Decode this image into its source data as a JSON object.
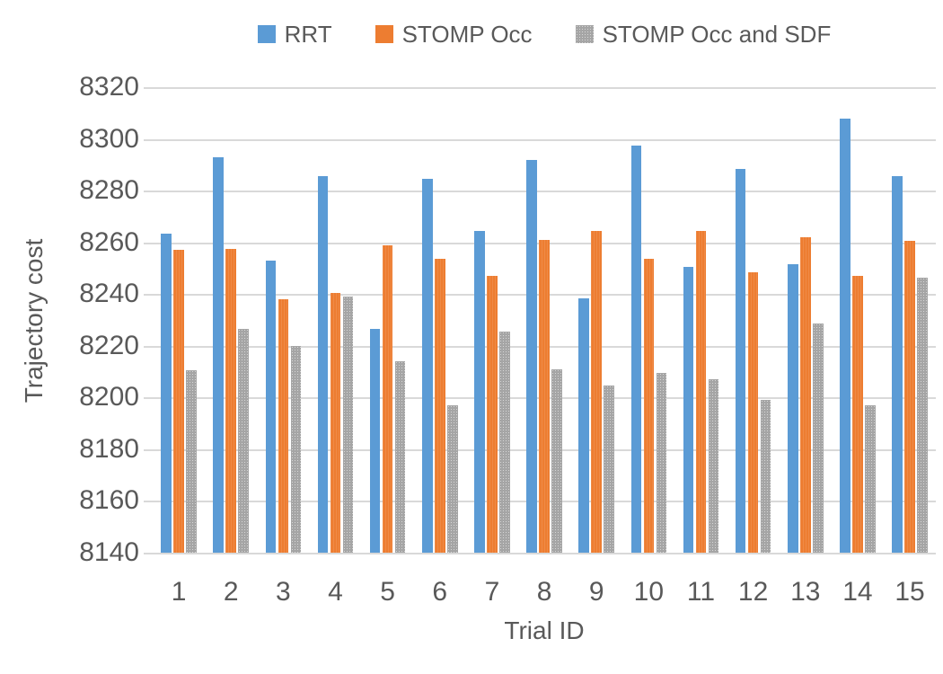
{
  "chart_data": {
    "type": "bar",
    "title": "",
    "xlabel": "Trial ID",
    "ylabel": "Trajectory cost",
    "ylim": [
      8140,
      8320
    ],
    "ytick_step": 20,
    "grid": true,
    "legend_position": "top",
    "categories": [
      "1",
      "2",
      "3",
      "4",
      "5",
      "6",
      "7",
      "8",
      "9",
      "10",
      "11",
      "12",
      "13",
      "14",
      "15"
    ],
    "series": [
      {
        "name": "RRT",
        "color": "#5B9BD5",
        "values": [
          8263.5,
          8293,
          8253,
          8285.5,
          8226.5,
          8284.5,
          8264.5,
          8292,
          8238.5,
          8297.5,
          8250.5,
          8288.5,
          8251.5,
          8308,
          8285.5
        ]
      },
      {
        "name": "STOMP Occ",
        "color": "#ED7D31",
        "values": [
          8257,
          8257.5,
          8238,
          8240.5,
          8259,
          8253.5,
          8247,
          8261,
          8264.5,
          8253.5,
          8264.5,
          8248.5,
          8262,
          8247,
          8260.5
        ]
      },
      {
        "name": "STOMP Occ and SDF",
        "color": "#A5A5A5",
        "values": [
          8210.5,
          8226.5,
          8220,
          8239,
          8214,
          8197,
          8225.5,
          8211,
          8204.5,
          8209.5,
          8207,
          8199,
          8228.5,
          8197,
          8246.5
        ]
      }
    ]
  },
  "colors": {
    "text": "#595959",
    "gridline": "#D9D9D9",
    "background": "#FFFFFF"
  }
}
